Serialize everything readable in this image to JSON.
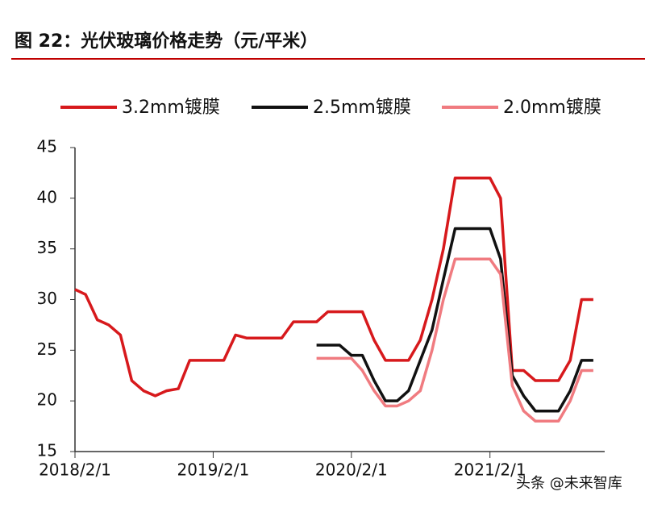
{
  "chart_data": {
    "type": "line",
    "title": "图 22：光伏玻璃价格走势（元/平米）",
    "watermark": "头条 @未来智库",
    "x": [
      "2018-02-01",
      "2018-03-01",
      "2018-04-01",
      "2018-05-01",
      "2018-06-01",
      "2018-07-01",
      "2018-08-01",
      "2018-09-01",
      "2018-10-01",
      "2018-11-01",
      "2018-12-01",
      "2019-01-01",
      "2019-02-01",
      "2019-03-01",
      "2019-04-01",
      "2019-05-01",
      "2019-06-01",
      "2019-07-01",
      "2019-08-01",
      "2019-09-01",
      "2019-10-01",
      "2019-11-01",
      "2019-12-01",
      "2020-01-01",
      "2020-02-01",
      "2020-03-01",
      "2020-04-01",
      "2020-05-01",
      "2020-06-01",
      "2020-07-01",
      "2020-08-01",
      "2020-09-01",
      "2020-10-01",
      "2020-11-01",
      "2020-12-01",
      "2021-01-01",
      "2021-02-01",
      "2021-03-01",
      "2021-04-01",
      "2021-05-01",
      "2021-06-01",
      "2021-07-01",
      "2021-08-01",
      "2021-09-01",
      "2021-10-01",
      "2021-11-01"
    ],
    "series": [
      {
        "name": "3.2mm镀膜",
        "color": "#d7191c",
        "values": [
          31,
          30.5,
          28,
          27.5,
          26.5,
          22,
          21,
          20.5,
          21,
          21.2,
          24,
          24,
          24,
          24,
          26.5,
          26.2,
          26.2,
          26.2,
          26.2,
          27.8,
          27.8,
          27.8,
          28.8,
          28.8,
          28.8,
          28.8,
          26,
          24,
          24,
          24,
          26,
          30,
          35,
          42,
          42,
          42,
          42,
          40,
          23,
          23,
          22,
          22,
          22,
          24,
          30,
          30
        ]
      },
      {
        "name": "2.5mm镀膜",
        "color": "#111111",
        "values": [
          null,
          null,
          null,
          null,
          null,
          null,
          null,
          null,
          null,
          null,
          null,
          null,
          null,
          null,
          null,
          null,
          null,
          null,
          null,
          null,
          null,
          25.5,
          25.5,
          25.5,
          24.5,
          24.5,
          22,
          20,
          20,
          21,
          24,
          27,
          32,
          37,
          37,
          37,
          37,
          34,
          22.5,
          20.5,
          19,
          19,
          19,
          21,
          24,
          24
        ]
      },
      {
        "name": "2.0mm镀膜",
        "color": "#f07b80",
        "values": [
          null,
          null,
          null,
          null,
          null,
          null,
          null,
          null,
          null,
          null,
          null,
          null,
          null,
          null,
          null,
          null,
          null,
          null,
          null,
          null,
          null,
          24.2,
          24.2,
          24.2,
          24.2,
          23,
          21,
          19.5,
          19.5,
          20,
          21,
          25,
          30,
          34,
          34,
          34,
          34,
          32.5,
          21.5,
          19,
          18,
          18,
          18,
          20,
          23,
          23
        ]
      }
    ],
    "xlim": [
      "2018-02-01",
      "2021-12-01"
    ],
    "xticks": [
      {
        "value": "2018-02-01",
        "label": "2018/2/1"
      },
      {
        "value": "2019-02-01",
        "label": "2019/2/1"
      },
      {
        "value": "2020-02-01",
        "label": "2020/2/1"
      },
      {
        "value": "2021-02-01",
        "label": "2021/2/1"
      }
    ],
    "ylim": [
      15,
      45
    ],
    "yticks": [
      15,
      20,
      25,
      30,
      35,
      40,
      45
    ],
    "grid": false,
    "legend": "top"
  }
}
